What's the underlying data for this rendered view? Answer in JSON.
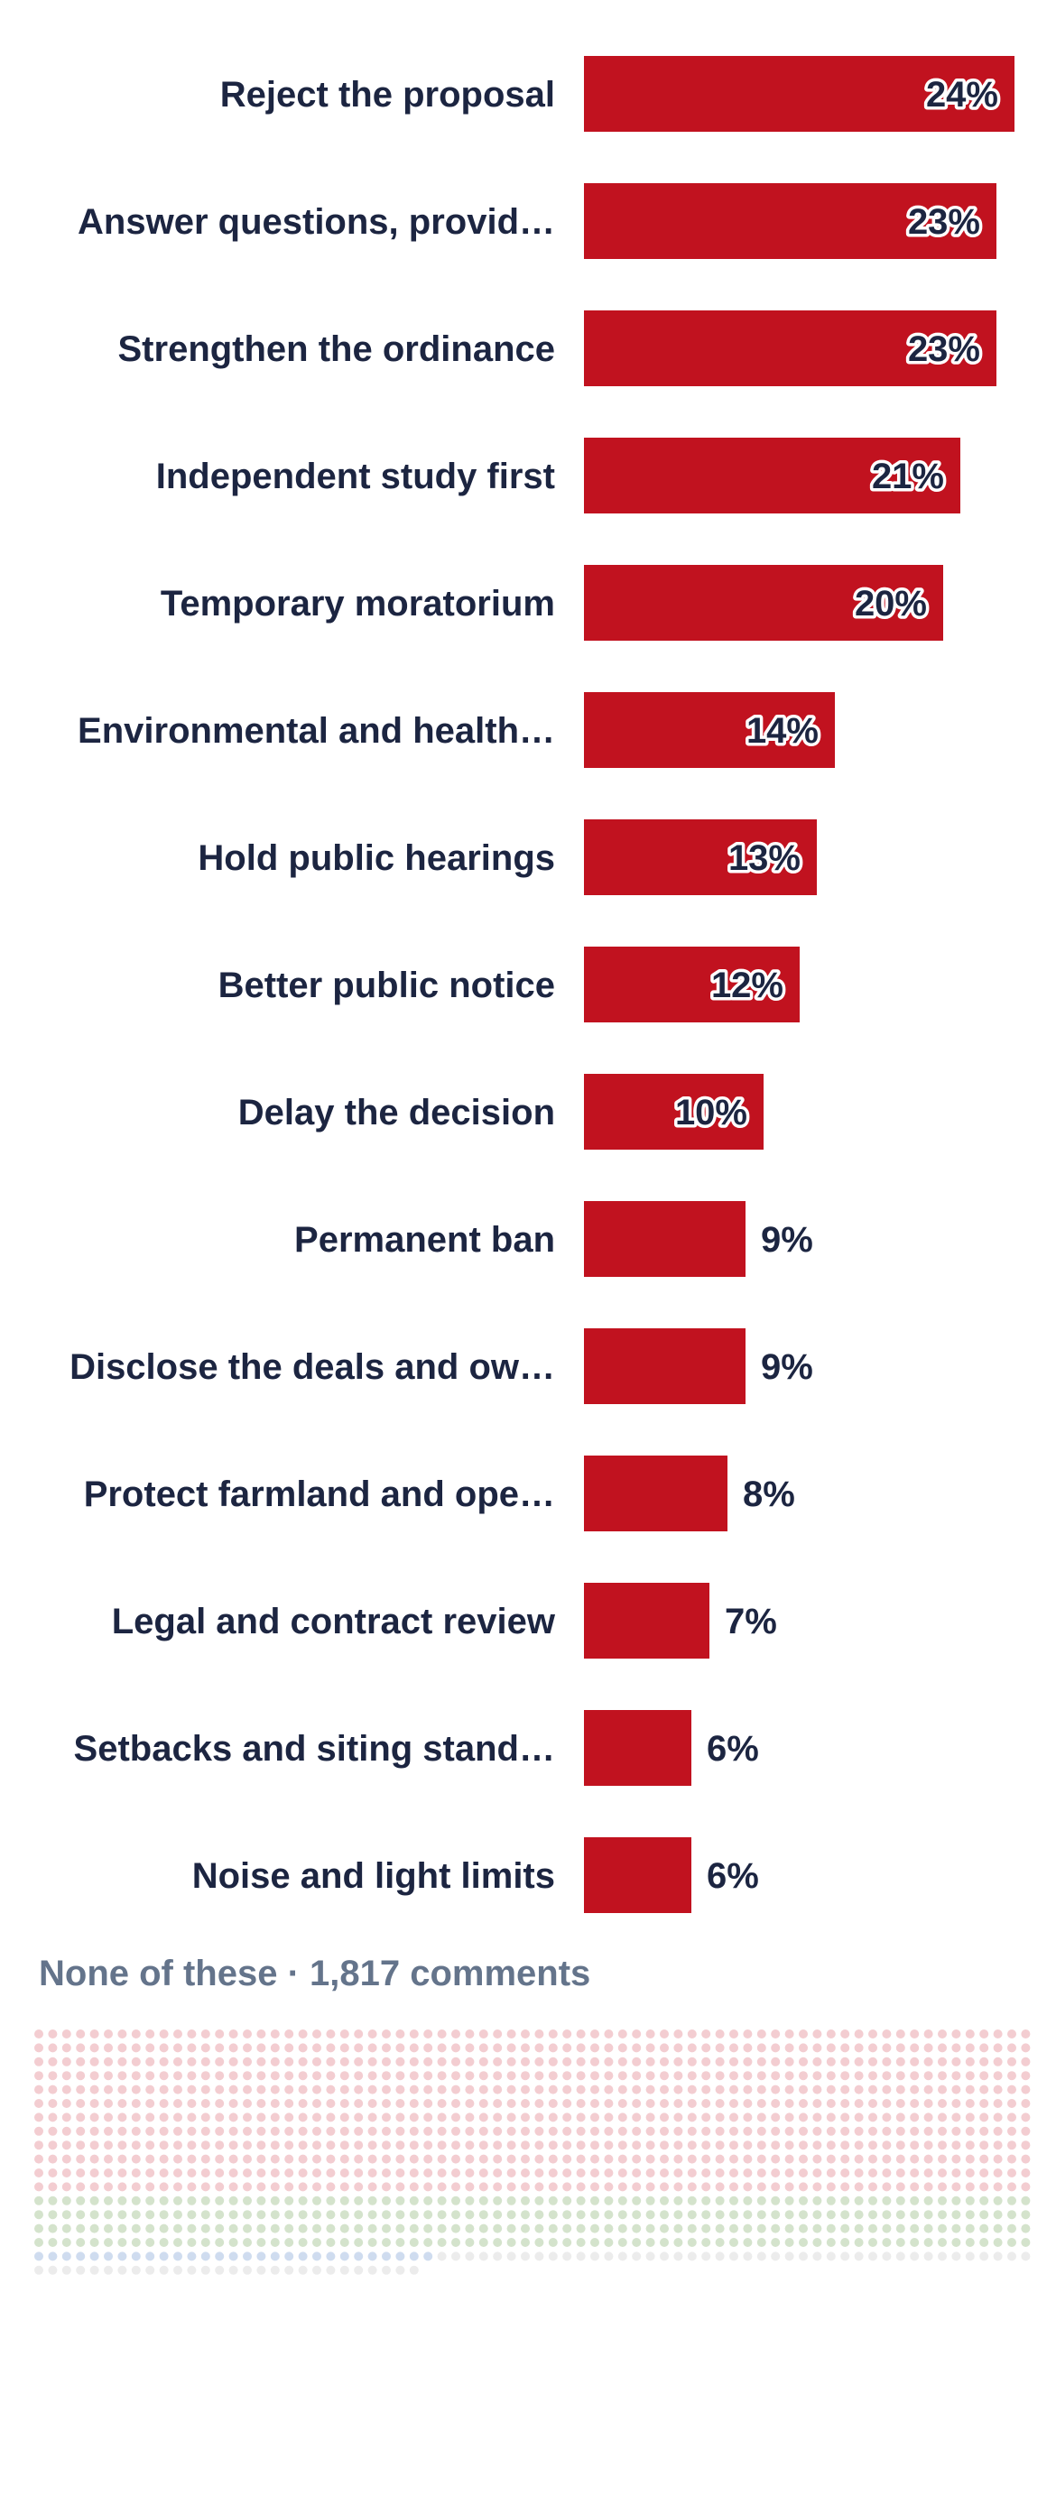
{
  "chart_data": {
    "type": "bar",
    "orientation": "horizontal",
    "categories": [
      "Reject the proposal",
      "Answer questions, provid…",
      "Strengthen the ordinance",
      "Independent study first",
      "Temporary moratorium",
      "Environmental and health…",
      "Hold public hearings",
      "Better public notice",
      "Delay the decision",
      "Permanent ban",
      "Disclose the deals and ow…",
      "Protect farmland and ope…",
      "Legal and contract review",
      "Setbacks and siting stand…",
      "Noise and light limits"
    ],
    "values": [
      24,
      23,
      23,
      21,
      20,
      14,
      13,
      12,
      10,
      9,
      9,
      8,
      7,
      6,
      6
    ],
    "value_labels": [
      "24%",
      "23%",
      "23%",
      "21%",
      "20%",
      "14%",
      "13%",
      "12%",
      "10%",
      "9%",
      "9%",
      "8%",
      "7%",
      "6%",
      "6%"
    ],
    "unit": "%",
    "bar_color": "#c1121f",
    "label_color": "#1c2541",
    "xlim": [
      0,
      24
    ],
    "title": "",
    "xlabel": "",
    "ylabel": "",
    "grid": false
  },
  "none_section": {
    "title": "None of these · 1,817 comments",
    "title_color": "#64748b",
    "dot_colors": {
      "red": "#f3cdd1",
      "green": "#d4e3cc",
      "blue": "#cfdcef",
      "gray": "#ececec"
    }
  }
}
